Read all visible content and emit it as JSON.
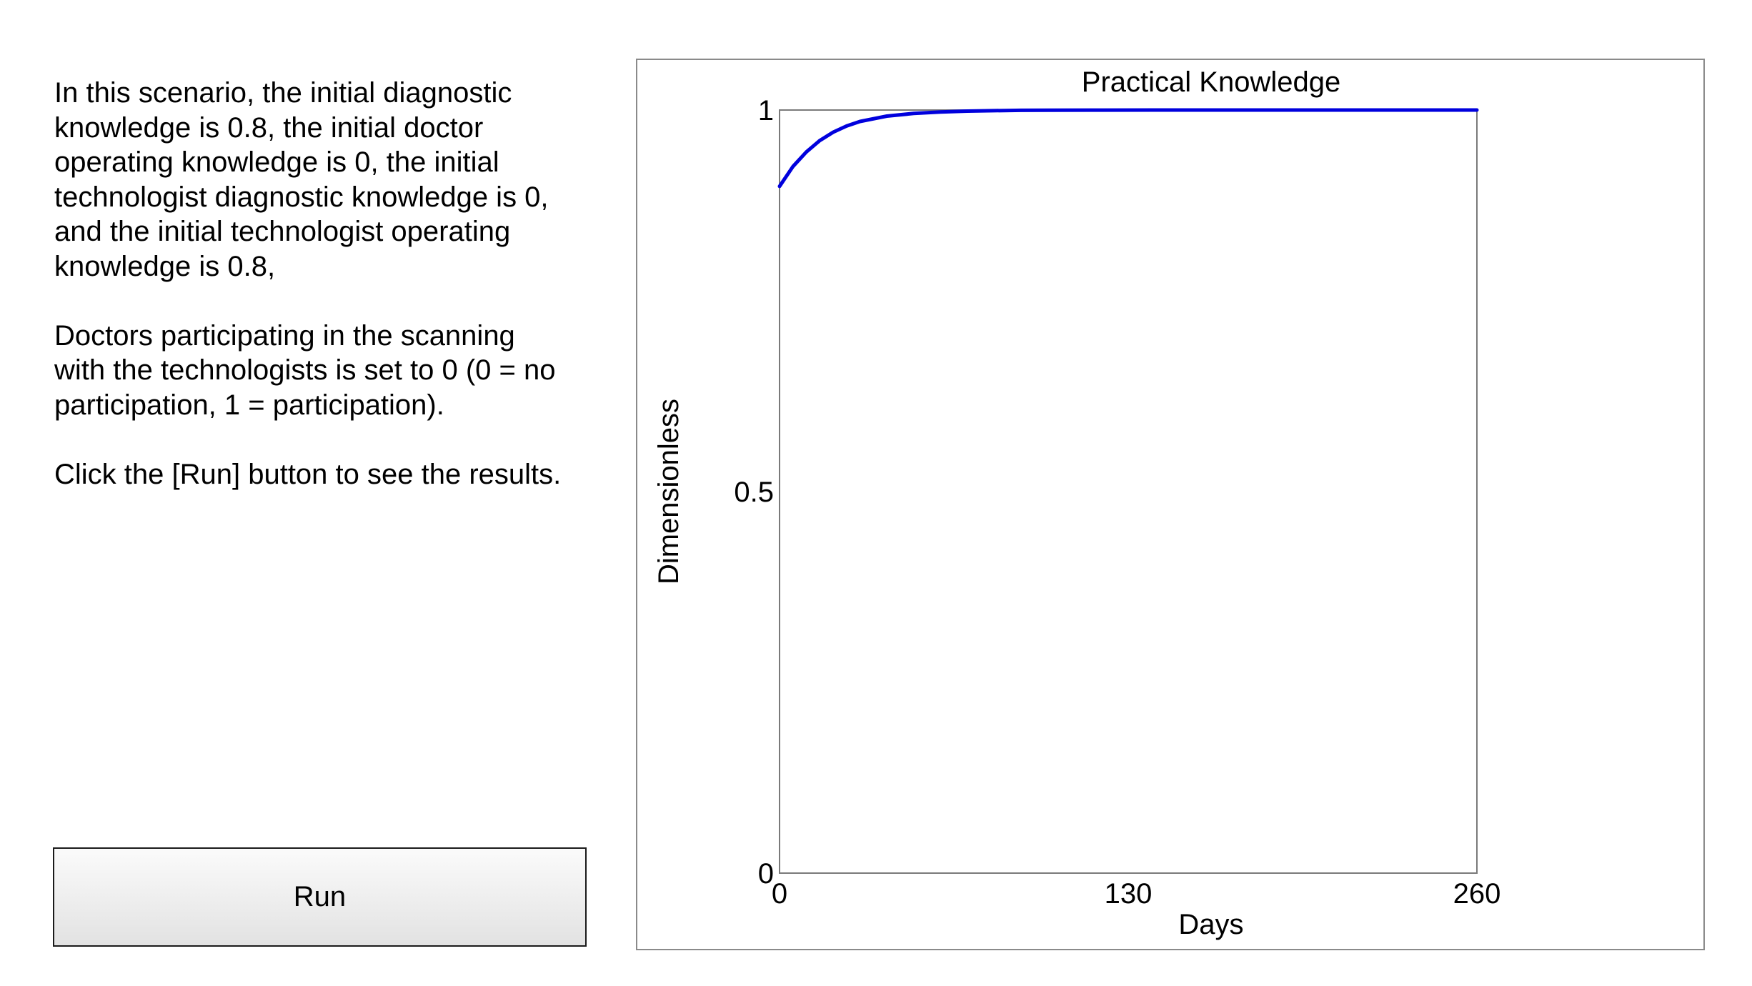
{
  "instructions": {
    "paragraph_1": "In this scenario, the initial diagnostic\nknowledge is 0.8, the initial doctor\noperating knowledge is 0, the initial\ntechnologist diagnostic knowledge is 0,\nand the initial technologist operating\nknowledge is 0.8,",
    "paragraph_2": "Doctors participating in the scanning\nwith the technologists is set to 0 (0 = no\nparticipation, 1 = participation).",
    "paragraph_3": "Click the [Run] button to see the results."
  },
  "run_button": {
    "label": "Run"
  },
  "colors": {
    "series_line": "#0000dd",
    "plot_border": "#7a7a7a",
    "frame_border": "#8a8a8a"
  },
  "chart_data": {
    "type": "line",
    "title": "Practical Knowledge",
    "xlabel": "Days",
    "ylabel": "Dimensionless",
    "xlim": [
      0,
      260
    ],
    "ylim": [
      0,
      1
    ],
    "x_ticks": [
      0,
      130,
      260
    ],
    "y_ticks": [
      0,
      0.5,
      1
    ],
    "x_tick_labels": [
      "0",
      "130",
      "260"
    ],
    "y_tick_labels": [
      "0",
      "0.5",
      "1"
    ],
    "grid": false,
    "legend": "none",
    "series": [
      {
        "x": [
          0,
          5,
          10,
          15,
          20,
          25,
          30,
          40,
          50,
          60,
          70,
          80,
          90,
          100,
          120,
          140,
          160,
          180,
          200,
          220,
          240,
          260
        ],
        "y": [
          0.9,
          0.926,
          0.945,
          0.96,
          0.971,
          0.979,
          0.985,
          0.992,
          0.9955,
          0.9975,
          0.9986,
          0.9992,
          0.9996,
          0.9998,
          0.9999,
          1.0,
          1.0,
          1.0,
          1.0,
          1.0,
          1.0,
          1.0
        ]
      }
    ]
  }
}
